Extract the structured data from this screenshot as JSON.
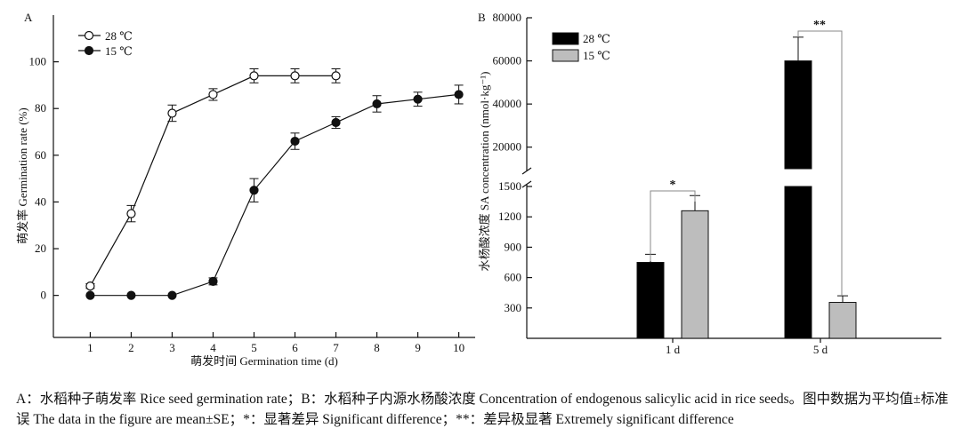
{
  "chart_data": [
    {
      "panel": "A",
      "type": "line",
      "title": "",
      "xlabel": "萌发时间  Germination time (d)",
      "ylabel": "萌发率 Germination rate (%)",
      "x": [
        1,
        2,
        3,
        4,
        5,
        6,
        7,
        8,
        9,
        10
      ],
      "xticks": [
        "1",
        "2",
        "3",
        "4",
        "5",
        "6",
        "7",
        "8",
        "9",
        "10"
      ],
      "yticks": [
        "0",
        "20",
        "40",
        "60",
        "80",
        "100"
      ],
      "ylim": [
        -18,
        120
      ],
      "legend_position": "top-left",
      "series": [
        {
          "name": "28 ℃",
          "marker": "open-circle",
          "x": [
            1,
            2,
            3,
            4,
            5,
            6,
            7
          ],
          "values": [
            4,
            35,
            78,
            86,
            94,
            94,
            94
          ],
          "error": [
            1,
            3.5,
            3.5,
            2.5,
            3,
            3,
            3
          ]
        },
        {
          "name": "15 ℃",
          "marker": "filled-circle",
          "x": [
            1,
            2,
            3,
            4,
            5,
            6,
            7,
            8,
            9,
            10
          ],
          "values": [
            0,
            0,
            0,
            6,
            45,
            66,
            74,
            82,
            84,
            86
          ],
          "error": [
            0,
            0,
            0,
            1.5,
            5,
            3.5,
            2.5,
            3.5,
            3,
            4
          ]
        }
      ]
    },
    {
      "panel": "B",
      "type": "bar",
      "title": "",
      "xlabel": "",
      "ylabel": "水杨酸浓度 SA concentration (nmol·kg⁻¹)",
      "categories": [
        "1 d",
        "5 d"
      ],
      "broken_axis": true,
      "ylim_lower": [
        0,
        1500
      ],
      "ylim_upper": [
        10000,
        80000
      ],
      "yticks_lower": [
        "300",
        "600",
        "900",
        "1200",
        "1500"
      ],
      "yticks_upper": [
        "20000",
        "40000",
        "60000",
        "80000"
      ],
      "legend_position": "top-left",
      "series": [
        {
          "name": "28 ℃",
          "color": "#000000",
          "values": [
            750,
            60000
          ],
          "error": [
            80,
            11000
          ]
        },
        {
          "name": "15 ℃",
          "color": "#bdbdbd",
          "values": [
            1260,
            355
          ],
          "error": [
            150,
            65
          ]
        }
      ],
      "significance": [
        "*",
        "**"
      ]
    }
  ],
  "caption": {
    "line1": "A：水稻种子萌发率 Rice seed germination rate；B：水稻种子内源水杨酸浓度 Concentration of endogenous salicylic acid in rice seeds。图中数据为平均",
    "line2": "值±标准误 The data in the figure are mean±SE；*：显著差异 Significant difference；**：差异极显著 Extremely significant difference"
  }
}
